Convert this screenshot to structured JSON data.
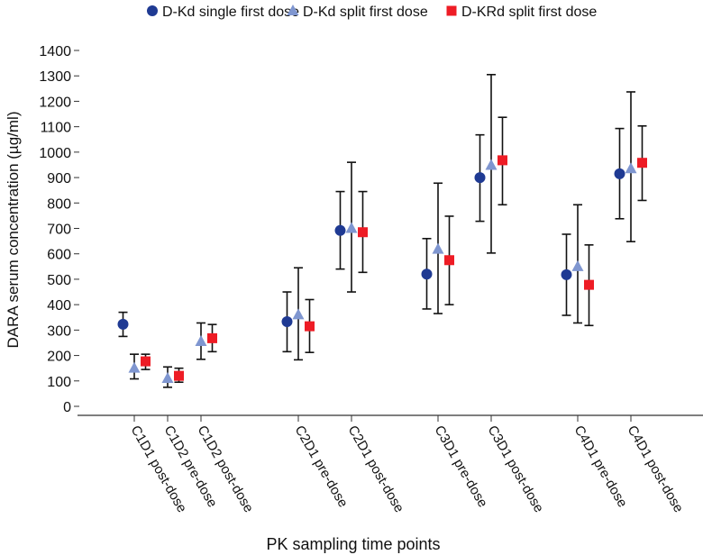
{
  "chart_data": {
    "type": "scatter",
    "title": "",
    "xlabel": "PK sampling time points",
    "ylabel": "DARA serum concentration (µg/ml)",
    "ylim": [
      0,
      1400
    ],
    "yticks": [
      0,
      100,
      200,
      300,
      400,
      500,
      600,
      700,
      800,
      900,
      1000,
      1100,
      1200,
      1300,
      1400
    ],
    "grid": false,
    "legend_position": "top",
    "categories": [
      "C1D1 post-dose",
      "C1D2 pre-dose",
      "C1D2 post-dose",
      "C2D1 pre-dose",
      "C2D1 post-dose",
      "C3D1 pre-dose",
      "C3D1 post-dose",
      "C4D1 pre-dose",
      "C4D1 post-dose"
    ],
    "series": [
      {
        "name": "D-Kd single first dose",
        "marker": "circle",
        "color": "#1f3a93",
        "values": [
          323,
          null,
          null,
          333,
          692,
          520,
          900,
          518,
          915
        ],
        "lower": [
          275,
          null,
          null,
          215,
          540,
          383,
          728,
          358,
          738
        ],
        "upper": [
          370,
          null,
          null,
          450,
          845,
          660,
          1068,
          677,
          1093
        ]
      },
      {
        "name": "D-Kd split first dose",
        "marker": "triangle",
        "color": "#7f96d0",
        "values": [
          150,
          110,
          255,
          360,
          700,
          618,
          948,
          550,
          935
        ],
        "lower": [
          108,
          75,
          185,
          183,
          450,
          365,
          603,
          328,
          648
        ],
        "upper": [
          205,
          155,
          328,
          545,
          960,
          878,
          1305,
          793,
          1237
        ]
      },
      {
        "name": "D-KRd split first dose",
        "marker": "square",
        "color": "#ee1c25",
        "values": [
          177,
          120,
          268,
          315,
          685,
          575,
          968,
          478,
          958
        ],
        "lower": [
          145,
          95,
          215,
          212,
          527,
          400,
          793,
          318,
          810
        ],
        "upper": [
          205,
          150,
          322,
          420,
          845,
          748,
          1137,
          635,
          1103
        ]
      }
    ]
  }
}
